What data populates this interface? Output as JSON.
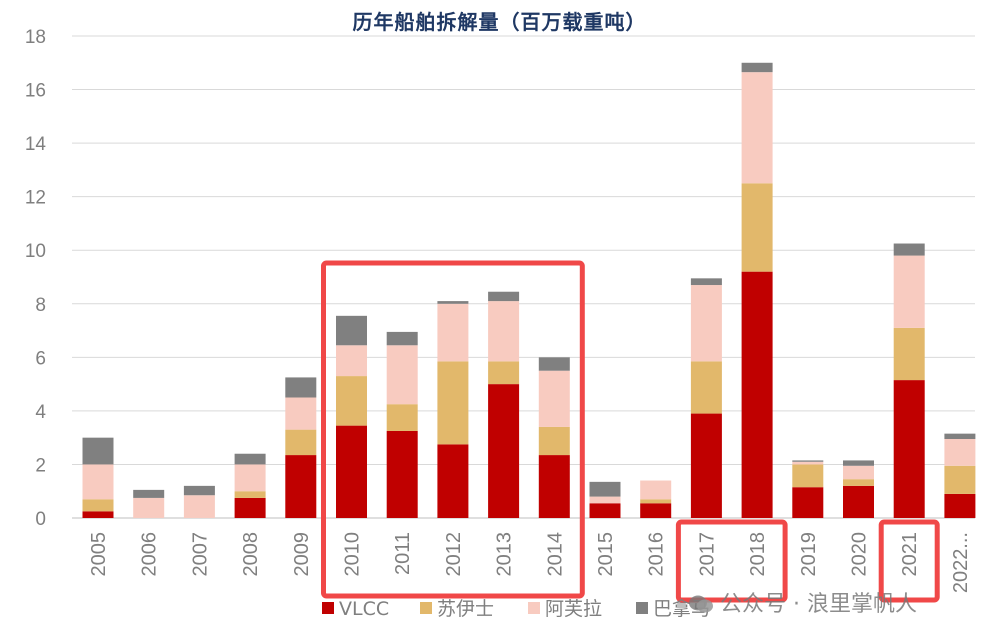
{
  "chart_data": {
    "type": "bar",
    "stacked": true,
    "title": "历年船舶拆解量（百万载重吨）",
    "categories": [
      "2005",
      "2006",
      "2007",
      "2008",
      "2009",
      "2010",
      "2011",
      "2012",
      "2013",
      "2014",
      "2015",
      "2016",
      "2017",
      "2018",
      "2019",
      "2020",
      "2021",
      "2022..."
    ],
    "series": [
      {
        "name": "VLCC",
        "color": "#c00000",
        "values": [
          0.25,
          0,
          0,
          0.75,
          2.35,
          3.45,
          3.25,
          2.75,
          5.0,
          2.35,
          0.55,
          0.55,
          3.9,
          9.2,
          1.15,
          1.2,
          5.15,
          0.9
        ]
      },
      {
        "name": "苏伊士",
        "color": "#e2b86b",
        "values": [
          0.45,
          0,
          0,
          0.25,
          0.95,
          1.85,
          1.0,
          3.1,
          0.85,
          1.05,
          0,
          0.15,
          1.95,
          3.3,
          0.85,
          0.25,
          1.95,
          1.05
        ]
      },
      {
        "name": "阿芙拉",
        "color": "#f8cbc0",
        "values": [
          1.3,
          0.75,
          0.85,
          1.0,
          1.2,
          1.15,
          2.2,
          2.15,
          2.25,
          2.1,
          0.25,
          0.7,
          2.85,
          4.15,
          0.1,
          0.5,
          2.7,
          1.0
        ]
      },
      {
        "name": "巴拿马",
        "color": "#808080",
        "values": [
          1.0,
          0.3,
          0.35,
          0.4,
          0.75,
          1.1,
          0.5,
          0.1,
          0.35,
          0.5,
          0.55,
          0,
          0.25,
          0.35,
          0.05,
          0.2,
          0.45,
          0.2
        ]
      }
    ],
    "ylim": [
      0,
      18
    ],
    "yticks": [
      0,
      2,
      4,
      6,
      8,
      10,
      12,
      14,
      16,
      18
    ],
    "grid": true,
    "legend_position": "bottom",
    "highlight_boxes": [
      {
        "from": "2010",
        "to": "2014",
        "color": "#f04848"
      },
      {
        "from": "2017",
        "to": "2018",
        "color": "#f04848"
      },
      {
        "from": "2021",
        "to": "2021",
        "color": "#f04848"
      }
    ]
  },
  "watermark": "公众号 · 浪里掌帆人"
}
